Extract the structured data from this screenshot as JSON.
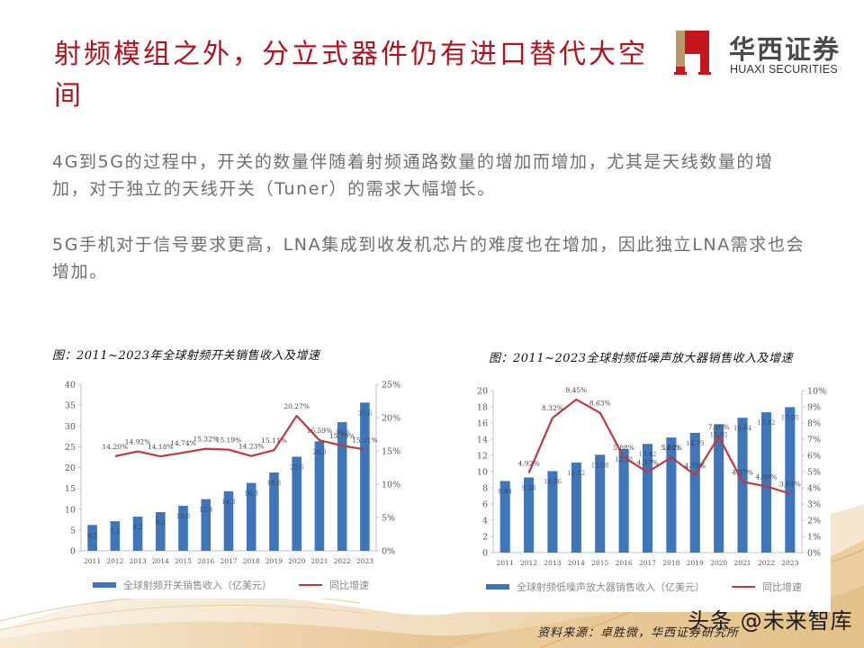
{
  "slide": {
    "title": "射频模组之外，分立式器件仍有进口替代大空间",
    "paragraphs": [
      "4G到5G的过程中，开关的数量伴随着射频通路数量的增加而增加，尤其是天线数量的增加，对于独立的天线开关（Tuner）的需求大幅增长。",
      "5G手机对于信号要求更高，LNA集成到收发机芯片的难度也在增加，因此独立LNA需求也会增加。"
    ],
    "source": "资料来源：卓胜微，华西证券研究所",
    "watermark": "头条 @未来智库"
  },
  "logo": {
    "name_cn": "华西证券",
    "name_en": "HUAXI SECURITIES",
    "colors": {
      "red": "#c4161c",
      "gold": "#b99a6b"
    }
  },
  "colors": {
    "title": "#b3121c",
    "bar": "#3f76ba",
    "line": "#c0393f",
    "text_gray": "#6f6f6f"
  },
  "chart_data": [
    {
      "type": "bar+line",
      "title": "图：2011~2023年全球射频开关销售收入及增速",
      "categories": [
        "2011",
        "2012",
        "2013",
        "2014",
        "2015",
        "2016",
        "2017",
        "2018",
        "2019",
        "2020",
        "2021",
        "2022",
        "2023"
      ],
      "series": [
        {
          "name": "全球射频开关销售收入（亿美元）",
          "type": "bar",
          "axis": "left",
          "values": [
            6.2,
            7.1,
            8.2,
            9.3,
            10.8,
            12.4,
            14.3,
            16.3,
            18.8,
            22.6,
            26.3,
            30.9,
            35.6
          ]
        },
        {
          "name": "同比增速",
          "type": "line",
          "axis": "right",
          "values": [
            null,
            14.2,
            14.92,
            14.18,
            14.74,
            15.32,
            15.19,
            14.23,
            15.11,
            20.27,
            16.59,
            15.79,
            15.21
          ],
          "labels": [
            "",
            "14.20%",
            "14.92%",
            "14.18%",
            "14.74%",
            "15.32%",
            "15.19%",
            "14.23%",
            "15.11%",
            "20.27%",
            "16.59%",
            "15.79%",
            "15.21%"
          ]
        }
      ],
      "ylim_left": [
        0,
        40
      ],
      "yticks_left": [
        0,
        5,
        10,
        15,
        20,
        25,
        30,
        35,
        40
      ],
      "ylim_right": [
        0,
        25
      ],
      "yticks_right": [
        "0%",
        "5%",
        "10%",
        "15%",
        "20%",
        "25%"
      ],
      "legend_position": "bottom",
      "grid": false
    },
    {
      "type": "bar+line",
      "title": "图：2011~2023全球射频低噪声放大器销售收入及增速",
      "categories": [
        "2011",
        "2012",
        "2013",
        "2014",
        "2015",
        "2016",
        "2017",
        "2018",
        "2019",
        "2020",
        "2021",
        "2022",
        "2023"
      ],
      "series": [
        {
          "name": "全球射频低噪声放大器销售收入（亿美元）",
          "type": "bar",
          "axis": "left",
          "values": [
            8.84,
            9.28,
            10.06,
            11.12,
            12.08,
            12.78,
            13.42,
            14.21,
            14.79,
            15.85,
            16.64,
            17.32,
            17.95
          ],
          "labels": [
            "8.84",
            "9.28",
            "10.06",
            "11.12",
            "12.08",
            "12.78",
            "13.42",
            "14.21",
            "14.79",
            "15.85",
            "16.64",
            "17.32",
            "17.95"
          ]
        },
        {
          "name": "同比增速",
          "type": "line",
          "axis": "right",
          "values": [
            null,
            4.92,
            8.32,
            9.45,
            8.63,
            5.88,
            4.97,
            5.88,
            4.79,
            7.16,
            4.37,
            4.09,
            3.64
          ],
          "labels": [
            "",
            "4.92%",
            "8.32%",
            "9.45%",
            "8.63%",
            "5.88%",
            "4.97%",
            "5.88%",
            "4.79%",
            "7.16%",
            "4.37%",
            "4.09%",
            "3.64%"
          ]
        }
      ],
      "ylim_left": [
        0,
        20
      ],
      "yticks_left": [
        0,
        2,
        4,
        6,
        8,
        10,
        12,
        14,
        16,
        18,
        20
      ],
      "ylim_right": [
        0,
        10
      ],
      "yticks_right": [
        "0%",
        "1%",
        "2%",
        "3%",
        "4%",
        "5%",
        "6%",
        "7%",
        "8%",
        "9%",
        "10%"
      ],
      "legend_position": "bottom",
      "grid": false
    }
  ]
}
